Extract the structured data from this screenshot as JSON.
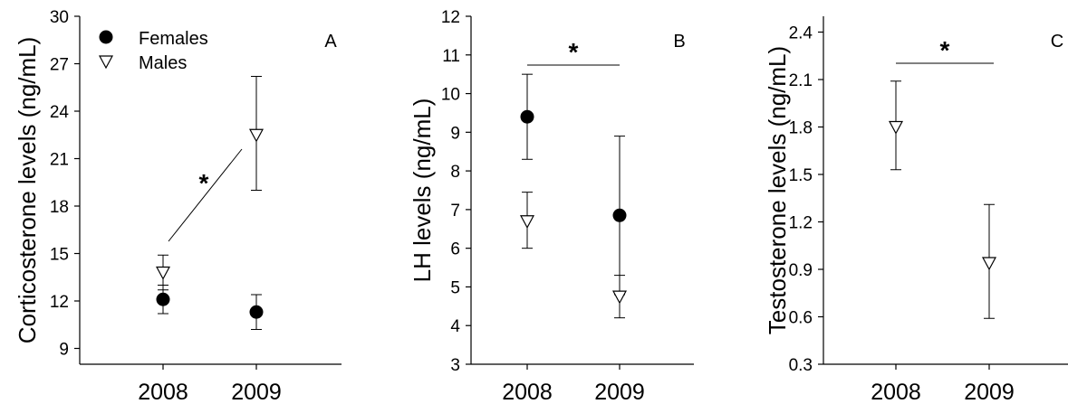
{
  "chart_data": [
    {
      "type": "scatter",
      "panel_letter": "A",
      "ylabel": "Corticosterone levels (ng/mL)",
      "categories": [
        "2008",
        "2009"
      ],
      "ylim": [
        8,
        30
      ],
      "yticks": [
        "9",
        "12",
        "15",
        "18",
        "21",
        "24",
        "27",
        "30"
      ],
      "legend": {
        "position": "top-left"
      },
      "series": [
        {
          "name": "Females",
          "marker": "filled-circle",
          "values": [
            12.1,
            11.3
          ],
          "errors": [
            [
              11.2,
              13.0
            ],
            [
              10.2,
              12.4
            ]
          ]
        },
        {
          "name": "Males",
          "marker": "open-down-triangle",
          "values": [
            13.8,
            22.5
          ],
          "errors": [
            [
              12.7,
              14.9
            ],
            [
              19.0,
              26.2
            ]
          ]
        }
      ],
      "significance": {
        "symbol": "*",
        "style": "diagonal"
      }
    },
    {
      "type": "scatter",
      "panel_letter": "B",
      "ylabel": "LH levels (ng/mL)",
      "categories": [
        "2008",
        "2009"
      ],
      "ylim": [
        3,
        12
      ],
      "yticks": [
        "3",
        "4",
        "5",
        "6",
        "7",
        "8",
        "9",
        "10",
        "11",
        "12"
      ],
      "series": [
        {
          "marker": "filled-circle",
          "values": [
            9.4,
            6.85
          ],
          "errors": [
            [
              8.3,
              10.5
            ],
            [
              4.8,
              8.9
            ]
          ]
        },
        {
          "marker": "open-down-triangle",
          "values": [
            6.7,
            4.75
          ],
          "errors": [
            [
              6.0,
              7.45
            ],
            [
              4.2,
              5.3
            ]
          ]
        }
      ],
      "significance": {
        "symbol": "*",
        "style": "horizontal"
      }
    },
    {
      "type": "scatter",
      "panel_letter": "C",
      "ylabel": "Testosterone levels (ng/mL)",
      "categories": [
        "2008",
        "2009"
      ],
      "ylim": [
        0.3,
        2.5
      ],
      "yticks": [
        "0.3",
        "0.6",
        "0.9",
        "1.2",
        "1.5",
        "1.8",
        "2.1",
        "2.4"
      ],
      "series": [
        {
          "marker": "open-down-triangle",
          "values": [
            1.8,
            0.94
          ],
          "errors": [
            [
              1.53,
              2.09
            ],
            [
              0.59,
              1.31
            ]
          ]
        }
      ],
      "significance": {
        "symbol": "*",
        "style": "horizontal"
      }
    }
  ]
}
